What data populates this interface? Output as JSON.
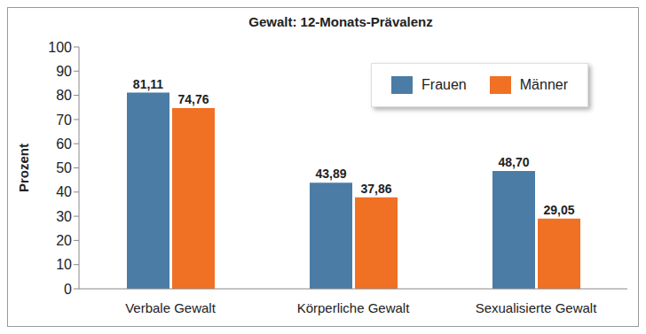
{
  "chart_data": {
    "type": "bar",
    "title": "Gewalt: 12-Monats-Prävalenz",
    "y_label": "Prozent",
    "categories": [
      "Verbale Gewalt",
      "Körperliche Gewalt",
      "Sexualisierte Gewalt"
    ],
    "series": [
      {
        "name": "Frauen",
        "color": "#4a7ca6",
        "values": [
          81.11,
          43.89,
          48.7
        ],
        "value_labels": [
          "81,11",
          "43,89",
          "48,70"
        ]
      },
      {
        "name": "Männer",
        "color": "#f07024",
        "values": [
          74.76,
          37.86,
          29.05
        ],
        "value_labels": [
          "74,76",
          "37,86",
          "29,05"
        ]
      }
    ],
    "ylim": [
      0,
      100
    ],
    "yticks": [
      0,
      10,
      20,
      30,
      40,
      50,
      60,
      70,
      80,
      90,
      100
    ],
    "grid": false,
    "legend": "top-right",
    "data_labels": true
  }
}
